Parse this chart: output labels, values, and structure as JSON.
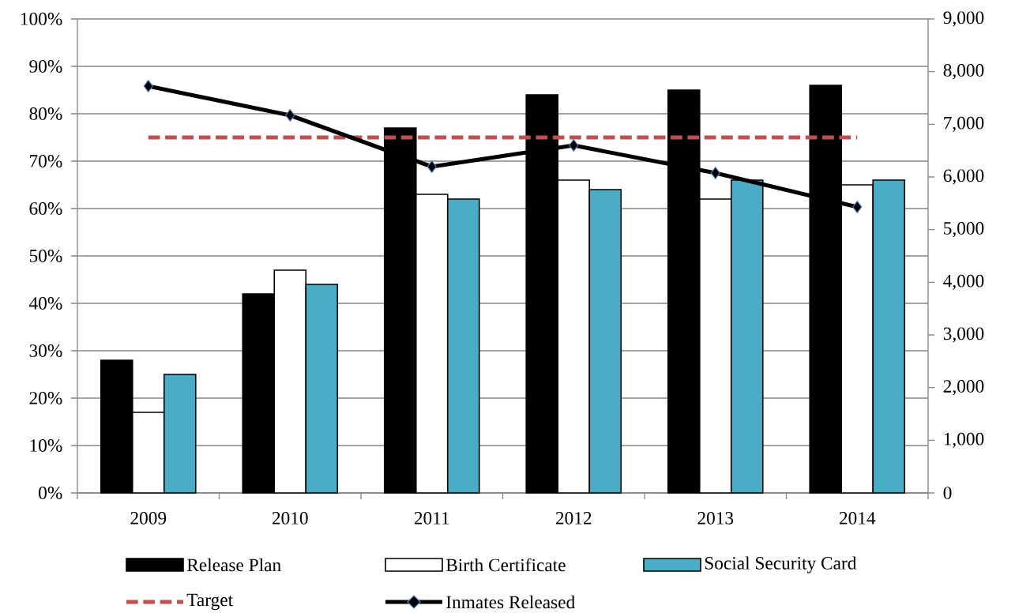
{
  "chart_data": {
    "type": "bar",
    "categories": [
      "2009",
      "2010",
      "2011",
      "2012",
      "2013",
      "2014"
    ],
    "series": [
      {
        "name": "Release Plan",
        "color": "#000000",
        "values": [
          28,
          42,
          77,
          84,
          85,
          86
        ]
      },
      {
        "name": "Birth Certificate",
        "color": "#ffffff",
        "values": [
          17,
          47,
          63,
          66,
          62,
          65
        ]
      },
      {
        "name": "Social Security Card",
        "color": "#4bacc6",
        "values": [
          25,
          44,
          62,
          64,
          66,
          66
        ]
      },
      {
        "name": "Target",
        "type": "line",
        "color": "#c0504d",
        "line_style": "dashed",
        "marker": "none",
        "values": [
          75,
          75,
          75,
          75,
          75,
          75
        ]
      },
      {
        "name": "Inmates Released",
        "type": "line",
        "axis": "y2",
        "color": "#000000",
        "line_style": "solid",
        "marker": "diamond",
        "values": [
          7725,
          7170,
          6195,
          6600,
          6075,
          5430
        ]
      }
    ],
    "ylim": [
      0,
      100
    ],
    "yticks": [
      {
        "value": 0,
        "label": "0%"
      },
      {
        "value": 10,
        "label": "10%"
      },
      {
        "value": 20,
        "label": "20%"
      },
      {
        "value": 30,
        "label": "30%"
      },
      {
        "value": 40,
        "label": "40%"
      },
      {
        "value": 50,
        "label": "50%"
      },
      {
        "value": 60,
        "label": "60%"
      },
      {
        "value": 70,
        "label": "70%"
      },
      {
        "value": 80,
        "label": "80%"
      },
      {
        "value": 90,
        "label": "90%"
      },
      {
        "value": 100,
        "label": "100%"
      }
    ],
    "y2lim": [
      0,
      9000
    ],
    "y2ticks": [
      0,
      {
        "value": 1000,
        "label": "1,000"
      },
      {
        "value": 2000,
        "label": "2,000"
      },
      {
        "value": 3000,
        "label": "3,000"
      },
      {
        "value": 4000,
        "label": "4,000"
      },
      {
        "value": 5000,
        "label": "5,000"
      },
      {
        "value": 6000,
        "label": "6,000"
      },
      {
        "value": 7000,
        "label": "7,000"
      },
      {
        "value": 8000,
        "label": "8,000"
      },
      {
        "value": 9000,
        "label": "9,000"
      }
    ],
    "grid": "y",
    "legend": "bottom"
  }
}
